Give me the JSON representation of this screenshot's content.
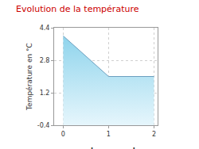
{
  "chart_data": {
    "type": "area",
    "title": "Evolution de la température",
    "x_label": "heure par heure",
    "y_label": "Température en °C",
    "x": [
      0,
      1,
      2
    ],
    "values": [
      4.0,
      2.0,
      2.0
    ],
    "color": "#8fd4ec",
    "xlim": [
      -0.2,
      2.08
    ],
    "xticks": [
      0,
      1,
      2
    ],
    "ylim": [
      -0.4,
      4.4
    ],
    "yticks": [
      -0.4,
      1.2,
      2.8,
      4.4
    ],
    "grid": true
  }
}
